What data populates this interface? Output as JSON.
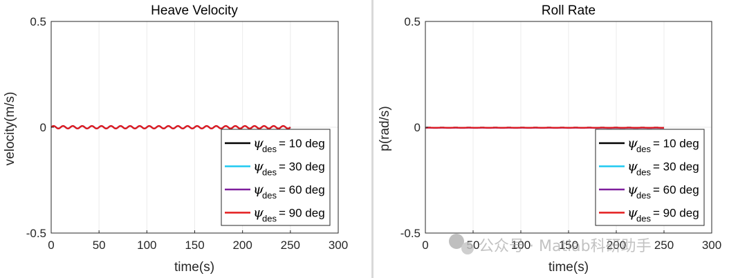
{
  "chart_data": [
    {
      "type": "line",
      "title": "Heave Velocity",
      "xlabel": "time(s)",
      "ylabel": "velocity(m/s)",
      "xlim": [
        0,
        300
      ],
      "ylim": [
        -0.5,
        0.5
      ],
      "xticks": [
        "0",
        "50",
        "100",
        "150",
        "200",
        "250",
        "300"
      ],
      "yticks": [
        "0.5",
        "0",
        "-0.5"
      ],
      "xtick_values": [
        0,
        50,
        100,
        150,
        200,
        250,
        300
      ],
      "ytick_values": [
        0.5,
        0,
        -0.5
      ],
      "grid": true,
      "legend_location": "bottom-right",
      "series": [
        {
          "name": "10 deg",
          "color": "#000000",
          "t_end": 250,
          "offset": 0.0,
          "amplitude": 0.006,
          "period": 10
        },
        {
          "name": "30 deg",
          "color": "#1ec8f0",
          "t_end": 250,
          "offset": 0.0,
          "amplitude": 0.006,
          "period": 10
        },
        {
          "name": "60 deg",
          "color": "#7e1e9c",
          "t_end": 250,
          "offset": 0.0,
          "amplitude": 0.006,
          "period": 10
        },
        {
          "name": "90 deg",
          "color": "#e41a1c",
          "t_end": 250,
          "offset": 0.0,
          "amplitude": 0.006,
          "period": 10
        }
      ]
    },
    {
      "type": "line",
      "title": "Roll Rate",
      "xlabel": "time(s)",
      "ylabel": "p(rad/s)",
      "xlim": [
        0,
        300
      ],
      "ylim": [
        -0.5,
        0.5
      ],
      "xticks": [
        "0",
        "50",
        "100",
        "150",
        "200",
        "250",
        "300"
      ],
      "yticks": [
        "0.5",
        "0",
        "-0.5"
      ],
      "xtick_values": [
        0,
        50,
        100,
        150,
        200,
        250,
        300
      ],
      "ytick_values": [
        0.5,
        0,
        -0.5
      ],
      "grid": true,
      "legend_location": "bottom-right",
      "series": [
        {
          "name": "10 deg",
          "color": "#000000",
          "t_end": 250,
          "offset": -0.002,
          "amplitude": 0.0005,
          "period": 14
        },
        {
          "name": "30 deg",
          "color": "#1ec8f0",
          "t_end": 250,
          "offset": -0.002,
          "amplitude": 0.0005,
          "period": 14
        },
        {
          "name": "60 deg",
          "color": "#7e1e9c",
          "t_end": 250,
          "offset": -0.003,
          "amplitude": 0.0005,
          "period": 14
        },
        {
          "name": "90 deg",
          "color": "#e41a1c",
          "t_end": 250,
          "offset": -0.002,
          "amplitude": 0.0005,
          "period": 14
        }
      ]
    }
  ],
  "legend": {
    "symbol": "ψ",
    "subscript": "des",
    "entries": [
      "= 10 deg",
      "= 30 deg",
      "= 60 deg",
      "= 90 deg"
    ]
  },
  "watermark": {
    "text": "公众号 · Matlab科研助手"
  }
}
